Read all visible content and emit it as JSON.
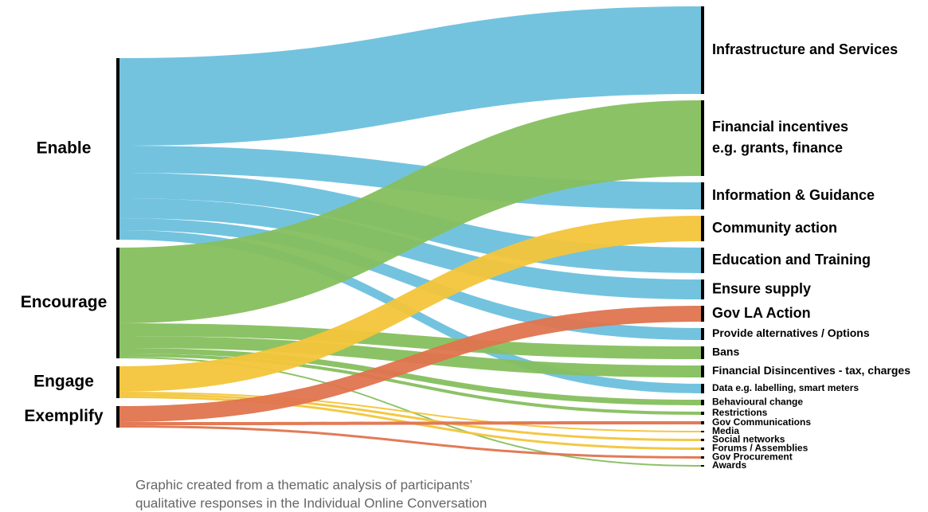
{
  "chart_data": {
    "type": "sankey",
    "sources": [
      {
        "name": "Enable",
        "color": "#6cc0dd"
      },
      {
        "name": "Encourage",
        "color": "#86bf5e"
      },
      {
        "name": "Engage",
        "color": "#f3c53a"
      },
      {
        "name": "Exemplify",
        "color": "#e0744e"
      }
    ],
    "targets": [
      {
        "lines": [
          "Infrastructure and Services"
        ]
      },
      {
        "lines": [
          "Financial incentives",
          "e.g. grants, finance"
        ]
      },
      {
        "lines": [
          "Information & Guidance"
        ]
      },
      {
        "lines": [
          "Community action"
        ]
      },
      {
        "lines": [
          "Education and Training"
        ]
      },
      {
        "lines": [
          "Ensure supply"
        ]
      },
      {
        "lines": [
          "Gov LA Action"
        ]
      },
      {
        "lines": [
          "Provide alternatives / Options"
        ]
      },
      {
        "lines": [
          "Bans"
        ]
      },
      {
        "lines": [
          "Financial Disincentives - tax, charges"
        ]
      },
      {
        "lines": [
          "Data e.g. labelling, smart meters"
        ]
      },
      {
        "lines": [
          "Behavioural change"
        ]
      },
      {
        "lines": [
          "Restrictions"
        ]
      },
      {
        "lines": [
          "Gov Communications"
        ]
      },
      {
        "lines": [
          "Media"
        ]
      },
      {
        "lines": [
          "Social networks"
        ]
      },
      {
        "lines": [
          "Forums / Assemblies"
        ]
      },
      {
        "lines": [
          "Gov Procurement"
        ]
      },
      {
        "lines": [
          "Awards"
        ]
      }
    ],
    "links": [
      {
        "source": 0,
        "target": 0,
        "value": 110
      },
      {
        "source": 0,
        "target": 2,
        "value": 34
      },
      {
        "source": 0,
        "target": 4,
        "value": 32
      },
      {
        "source": 0,
        "target": 5,
        "value": 25
      },
      {
        "source": 0,
        "target": 7,
        "value": 15
      },
      {
        "source": 0,
        "target": 10,
        "value": 12
      },
      {
        "source": 1,
        "target": 1,
        "value": 95
      },
      {
        "source": 1,
        "target": 8,
        "value": 16
      },
      {
        "source": 1,
        "target": 9,
        "value": 15
      },
      {
        "source": 1,
        "target": 11,
        "value": 7
      },
      {
        "source": 1,
        "target": 12,
        "value": 4
      },
      {
        "source": 1,
        "target": 18,
        "value": 2
      },
      {
        "source": 2,
        "target": 3,
        "value": 32
      },
      {
        "source": 2,
        "target": 14,
        "value": 2
      },
      {
        "source": 2,
        "target": 15,
        "value": 3
      },
      {
        "source": 2,
        "target": 16,
        "value": 3
      },
      {
        "source": 3,
        "target": 6,
        "value": 20
      },
      {
        "source": 3,
        "target": 13,
        "value": 4
      },
      {
        "source": 3,
        "target": 17,
        "value": 3
      }
    ],
    "caption": [
      "Graphic created from a thematic analysis of participants’",
      "qualitative responses in the Individual Online Conversation"
    ]
  }
}
